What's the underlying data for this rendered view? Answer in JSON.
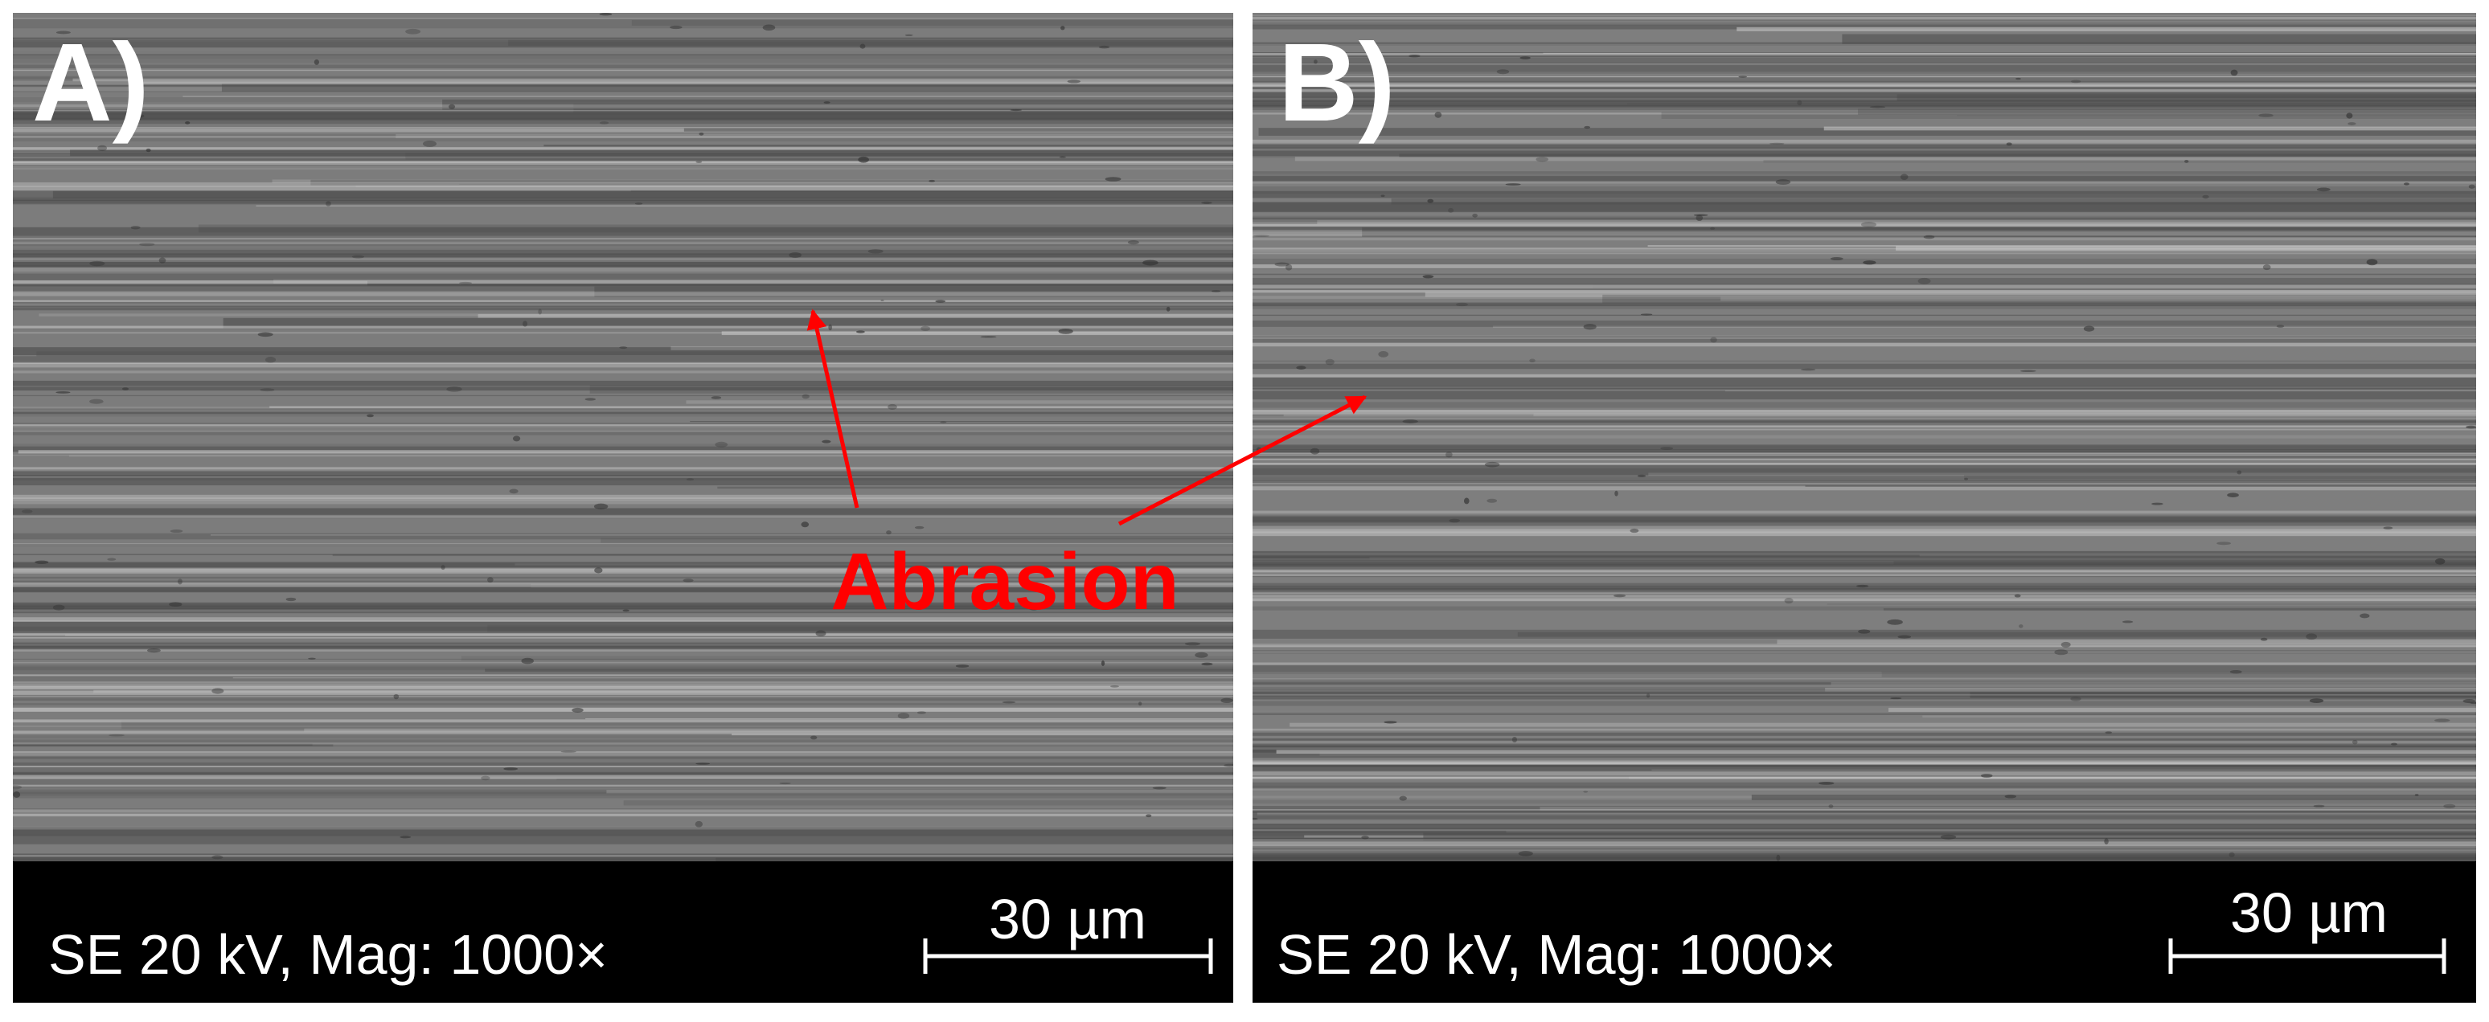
{
  "panels": [
    {
      "label": "A)",
      "info": "SE 20 kV, Mag: 1000×",
      "scale": "30 µm"
    },
    {
      "label": "B)",
      "info": "SE 20 kV, Mag: 1000×",
      "scale": "30 µm"
    }
  ],
  "annotation": "Abrasion"
}
